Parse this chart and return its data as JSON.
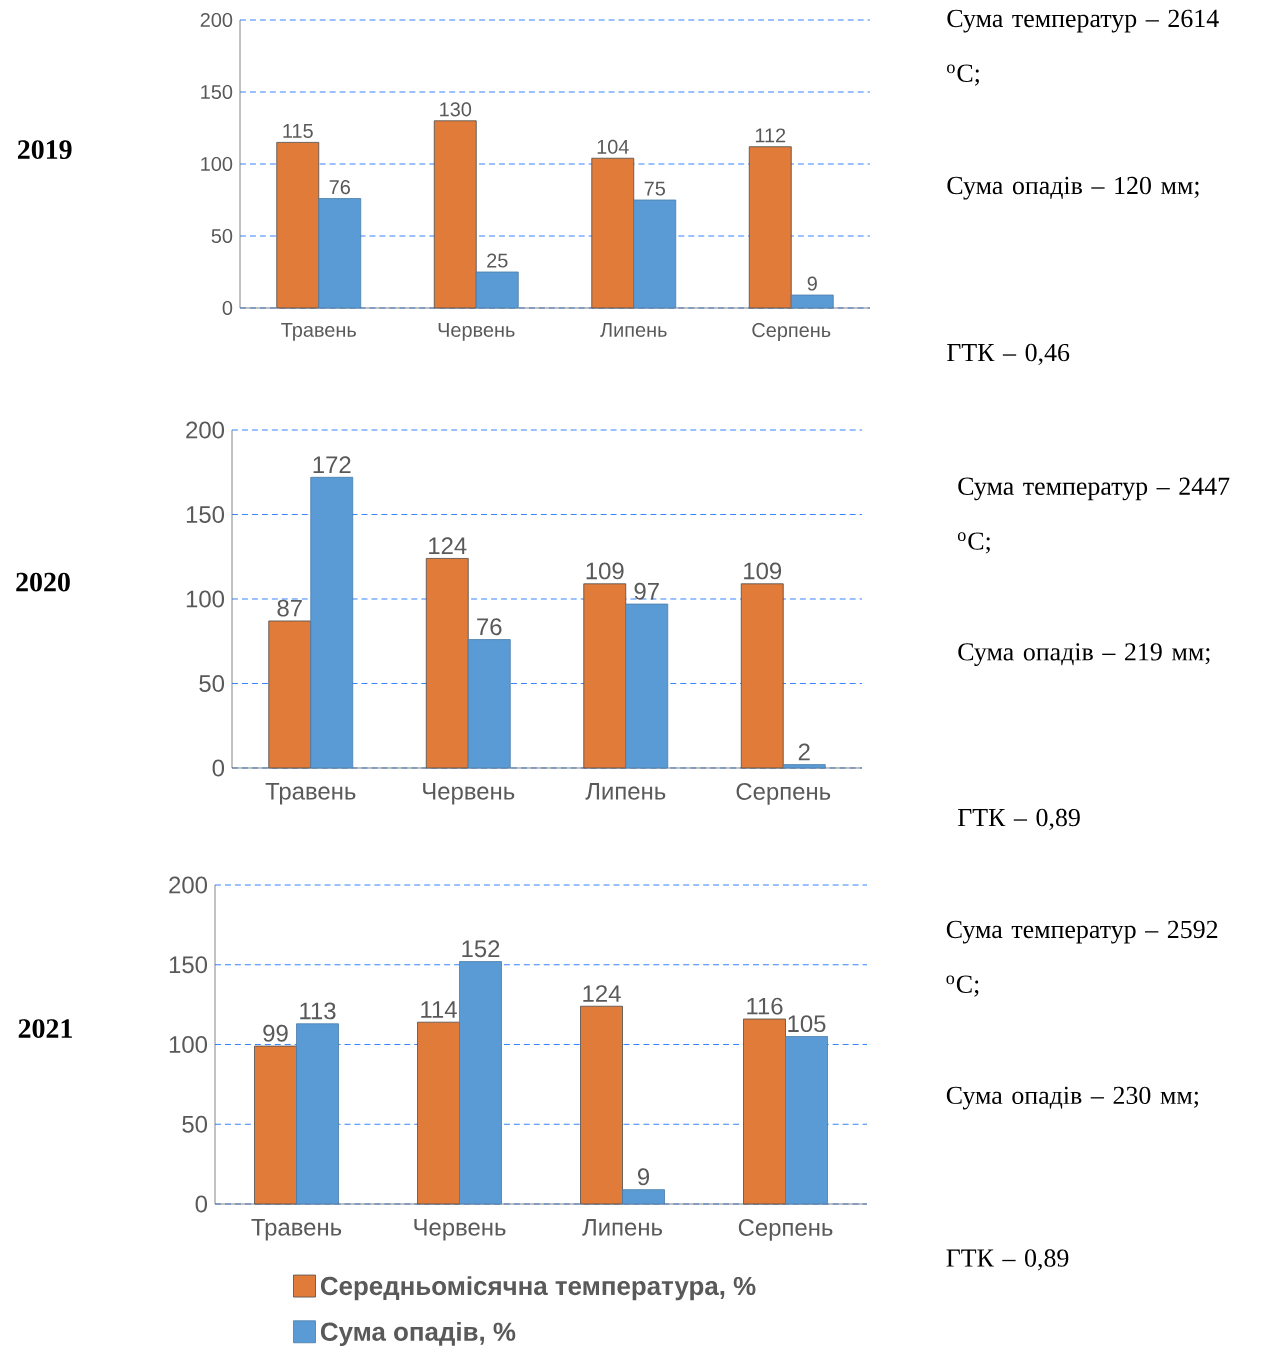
{
  "chart_data": [
    {
      "type": "bar",
      "ylabel": "2019",
      "categories": [
        "Травень",
        "Червень",
        "Липень",
        "Серпень"
      ],
      "series": [
        {
          "color": "#e07b39",
          "values": [
            115,
            130,
            104,
            112
          ]
        },
        {
          "color": "#5b9bd5",
          "values": [
            76,
            25,
            75,
            9
          ]
        }
      ],
      "ylim": [
        0,
        200
      ],
      "yticks": [
        0,
        50,
        100,
        150,
        200
      ],
      "grid": "y",
      "data_labels": true,
      "annotations": [
        "Сума температур – 2614 $^{o}$C;",
        "Сума опадів – 120 мм;",
        "ГТК – 0,46"
      ]
    },
    {
      "type": "bar",
      "ylabel": "2020",
      "categories": [
        "Травень",
        "Червень",
        "Липень",
        "Серпень"
      ],
      "series": [
        {
          "color": "#e07b39",
          "values": [
            87,
            124,
            109,
            109
          ]
        },
        {
          "color": "#5b9bd5",
          "values": [
            172,
            76,
            97,
            2
          ]
        }
      ],
      "ylim": [
        0,
        200
      ],
      "yticks": [
        0,
        50,
        100,
        150,
        200
      ],
      "grid": "y",
      "data_labels": true,
      "annotations": [
        "Сума температур – 2447 $^{o}$C;",
        "Сума опадів – 219 мм;",
        "ГТК – 0,89"
      ]
    },
    {
      "type": "bar",
      "ylabel": "2021",
      "categories": [
        "Травень",
        "Червень",
        "Липень",
        "Серпень"
      ],
      "series": [
        {
          "name": "Середньомісячна температура, %",
          "color": "#e07b39",
          "values": [
            99,
            114,
            124,
            116
          ]
        },
        {
          "name": "Сума опадів, %",
          "color": "#5b9bd5",
          "values": [
            113,
            152,
            9,
            105
          ]
        }
      ],
      "ylim": [
        0,
        200
      ],
      "yticks": [
        0,
        50,
        100,
        150,
        200
      ],
      "grid": "y",
      "data_labels": true,
      "legend": "bottom",
      "annotations": [
        "Сума температур – 2592 $^{o}$C;",
        "Сума опадів – 230 мм;",
        "ГТК – 0,89"
      ]
    }
  ]
}
